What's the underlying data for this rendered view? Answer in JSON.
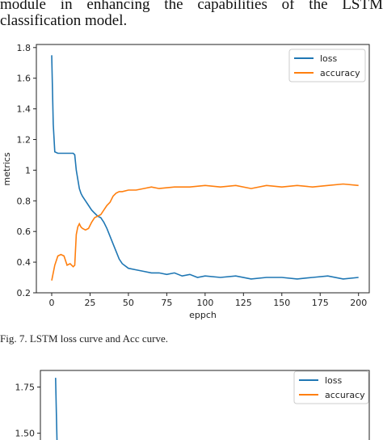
{
  "paper": {
    "line1": "module in enhancing the capabilities of the LSTM",
    "line2": "classification model.",
    "caption": "Fig. 7.   LSTM loss curve and Acc curve."
  },
  "colors": {
    "loss": "#1f77b4",
    "accuracy": "#ff7f0e"
  },
  "chart_data": [
    {
      "type": "line",
      "title": "",
      "xlabel": "eppch",
      "ylabel": "metrics",
      "xlim": [
        -10,
        207
      ],
      "ylim": [
        0.2,
        1.82
      ],
      "xticks": [
        0,
        25,
        50,
        75,
        100,
        125,
        150,
        175,
        200
      ],
      "yticks": [
        0.2,
        0.4,
        0.6,
        0.8,
        1.0,
        1.2,
        1.4,
        1.6,
        1.8
      ],
      "legend_position": "top-right",
      "series": [
        {
          "name": "loss",
          "x": [
            0,
            1,
            2,
            4,
            6,
            10,
            14,
            15,
            16,
            17,
            18,
            19,
            20,
            22,
            24,
            26,
            28,
            30,
            32,
            34,
            36,
            38,
            40,
            42,
            44,
            46,
            50,
            55,
            60,
            65,
            70,
            75,
            80,
            85,
            90,
            95,
            100,
            110,
            120,
            130,
            140,
            150,
            160,
            170,
            180,
            190,
            200
          ],
          "values": [
            1.75,
            1.3,
            1.12,
            1.11,
            1.11,
            1.11,
            1.11,
            1.1,
            1.0,
            0.94,
            0.88,
            0.85,
            0.83,
            0.8,
            0.77,
            0.74,
            0.72,
            0.7,
            0.69,
            0.66,
            0.62,
            0.57,
            0.52,
            0.47,
            0.42,
            0.39,
            0.36,
            0.35,
            0.34,
            0.33,
            0.33,
            0.32,
            0.33,
            0.31,
            0.32,
            0.3,
            0.31,
            0.3,
            0.31,
            0.29,
            0.3,
            0.3,
            0.29,
            0.3,
            0.31,
            0.29,
            0.3
          ]
        },
        {
          "name": "accuracy",
          "x": [
            0,
            2,
            4,
            6,
            8,
            10,
            12,
            14,
            15,
            16,
            17,
            18,
            19,
            20,
            22,
            24,
            26,
            28,
            30,
            32,
            34,
            36,
            38,
            40,
            42,
            44,
            46,
            50,
            55,
            60,
            65,
            70,
            80,
            90,
            100,
            110,
            120,
            130,
            140,
            150,
            160,
            170,
            180,
            190,
            200
          ],
          "values": [
            0.28,
            0.38,
            0.44,
            0.45,
            0.44,
            0.38,
            0.39,
            0.37,
            0.38,
            0.58,
            0.63,
            0.65,
            0.63,
            0.62,
            0.61,
            0.62,
            0.66,
            0.69,
            0.7,
            0.71,
            0.74,
            0.77,
            0.79,
            0.83,
            0.85,
            0.86,
            0.86,
            0.87,
            0.87,
            0.88,
            0.89,
            0.88,
            0.89,
            0.89,
            0.9,
            0.89,
            0.9,
            0.88,
            0.9,
            0.89,
            0.9,
            0.89,
            0.9,
            0.91,
            0.9
          ]
        }
      ]
    },
    {
      "type": "line",
      "title": "",
      "xlabel": "",
      "ylabel": "",
      "xlim": [
        -10,
        207
      ],
      "ylim": [
        1.45,
        1.84
      ],
      "yticks": [
        1.5,
        1.75
      ],
      "legend_position": "top-right",
      "series": [
        {
          "name": "loss",
          "x": [
            0,
            0.5,
            1
          ],
          "values": [
            1.8,
            1.62,
            1.45
          ]
        },
        {
          "name": "accuracy",
          "x": [],
          "values": []
        }
      ]
    }
  ]
}
